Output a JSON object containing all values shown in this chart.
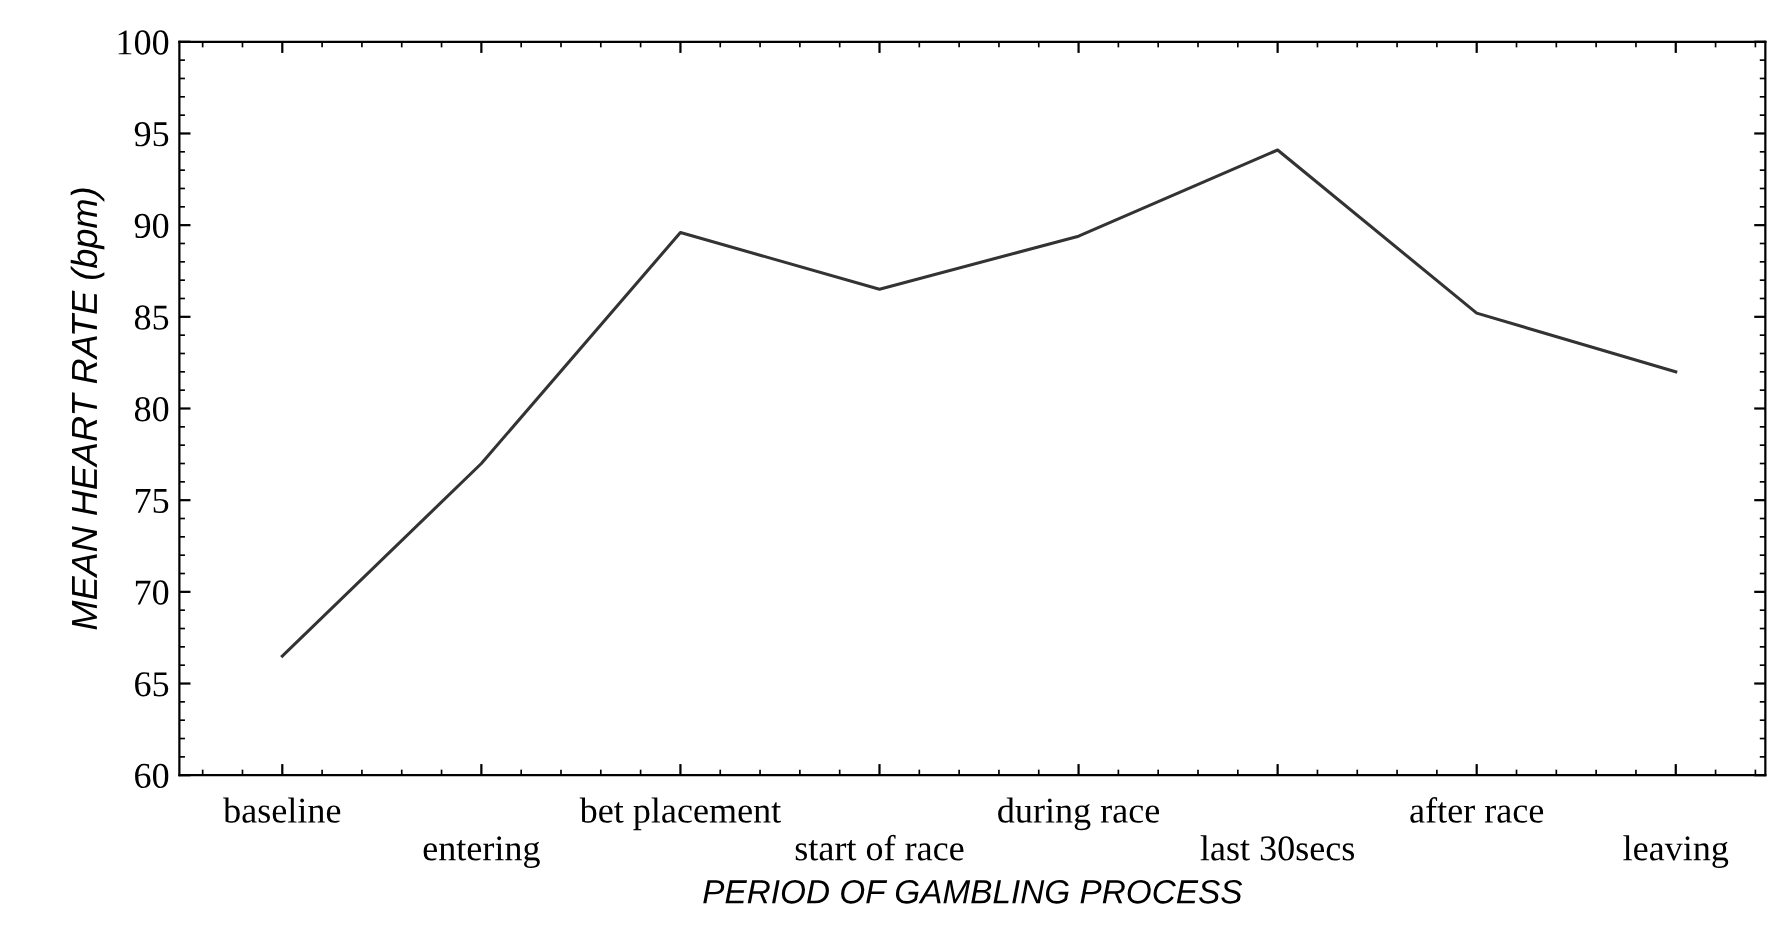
{
  "chart_data": {
    "type": "line",
    "xlabel": "PERIOD OF GAMBLING PROCESS",
    "ylabel": "MEAN HEART RATE (bpm)",
    "categories": [
      "baseline",
      "entering",
      "bet placement",
      "start of race",
      "during race",
      "last 30secs",
      "after race",
      "leaving"
    ],
    "series": [
      {
        "color": "#333333",
        "values": [
          66.5,
          77.0,
          89.6,
          86.5,
          89.4,
          94.1,
          85.2,
          82.0
        ]
      }
    ],
    "ylim": [
      60,
      100
    ],
    "yticks": [
      60,
      65,
      70,
      75,
      80,
      85,
      90,
      95,
      100
    ],
    "grid": false,
    "marker": "none",
    "line_style": "solid"
  }
}
